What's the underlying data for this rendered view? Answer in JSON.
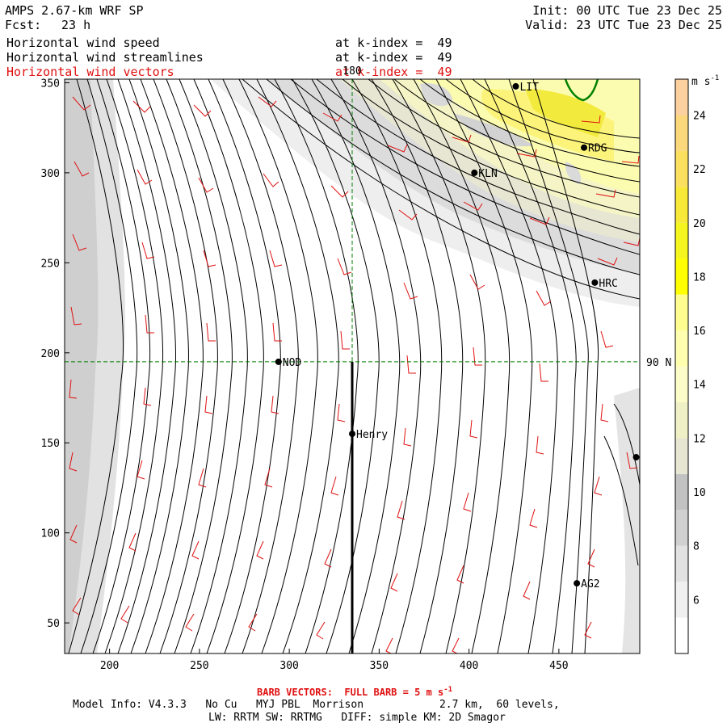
{
  "header": {
    "title": "AMPS 2.67-km WRF SP",
    "fcst_label": "Fcst:",
    "fcst_value": "23 h",
    "init": "Init: 00 UTC Tue 23 Dec 25",
    "valid": "Valid: 23 UTC Tue 23 Dec 25",
    "fields": [
      {
        "name": "Horizontal wind speed",
        "level": "at k-index =  49",
        "color": "#000000"
      },
      {
        "name": "Horizontal wind streamlines",
        "level": "at k-index =  49",
        "color": "#000000"
      },
      {
        "name": "Horizontal wind vectors",
        "level": "at k-index =  49",
        "color": "#e01010"
      }
    ]
  },
  "map": {
    "x_ticks": [
      200,
      250,
      300,
      350,
      400,
      450
    ],
    "y_ticks": [
      50,
      100,
      150,
      200,
      250,
      300,
      350
    ],
    "xlim": [
      175,
      495
    ],
    "ylim": [
      33,
      352
    ],
    "meridian_label": "180",
    "parallel_label": "90 N",
    "guide_x": 335,
    "guide_y": 195,
    "stations": [
      {
        "name": "LIT",
        "x": 426,
        "y": 348
      },
      {
        "name": "RDG",
        "x": 464,
        "y": 314
      },
      {
        "name": "KLN",
        "x": 403,
        "y": 300
      },
      {
        "name": "HRC",
        "x": 470,
        "y": 239
      },
      {
        "name": "NOD",
        "x": 294,
        "y": 195
      },
      {
        "name": "Henry",
        "x": 335,
        "y": 155
      },
      {
        "name": "",
        "x": 493,
        "y": 142
      },
      {
        "name": "AG2",
        "x": 460,
        "y": 72
      }
    ]
  },
  "colorbar": {
    "unit": "m s",
    "unit_sup": "-1",
    "ticks": [
      "6",
      "8",
      "10",
      "12",
      "14",
      "16",
      "18",
      "20",
      "22",
      "24"
    ],
    "colors": [
      "#ffffff",
      "#f0f0f0",
      "#e2e2e2",
      "#d0d0d0",
      "#c2c2c2",
      "#e6e6d2",
      "#f0f0c6",
      "#fcfcc8",
      "#fefeae",
      "#fefe90",
      "#ffff00",
      "#f5f520",
      "#f8e838",
      "#fbe060",
      "#fcd87c",
      "#fdd0a0"
    ]
  },
  "footer": {
    "barb_note": "BARB VECTORS:  FULL BARB = 5 m s",
    "barb_sup": "-1",
    "model_info": "Model Info: V4.3.3   No Cu   MYJ PBL  Morrison            2.7 km,  60 levels,",
    "physics": "LW: RRTM SW: RRTMG   DIFF: simple KM: 2D Smagor"
  }
}
